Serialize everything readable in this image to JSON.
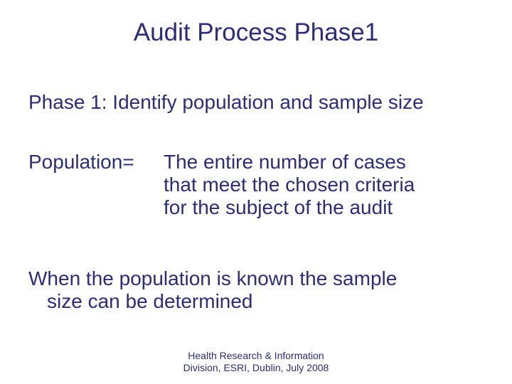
{
  "colors": {
    "text": "#2d2c7a",
    "background": "#ffffff"
  },
  "fonts": {
    "family": "Arial, Helvetica, sans-serif",
    "title_size": 35,
    "body_size": 28,
    "footer_size": 14
  },
  "title": "Audit Process Phase1",
  "subtitle": "Phase 1: Identify population and sample size",
  "definition": {
    "term": "Population=",
    "body_line1": "The entire number of cases",
    "body_line2": "that meet the chosen criteria",
    "body_line3": "for the subject of the audit"
  },
  "sentence": {
    "line1": "When the population is known the sample",
    "line2": "size can be determined"
  },
  "footer": {
    "line1": "Health Research & Information",
    "line2": "Division, ESRI, Dublin, July 2008"
  }
}
